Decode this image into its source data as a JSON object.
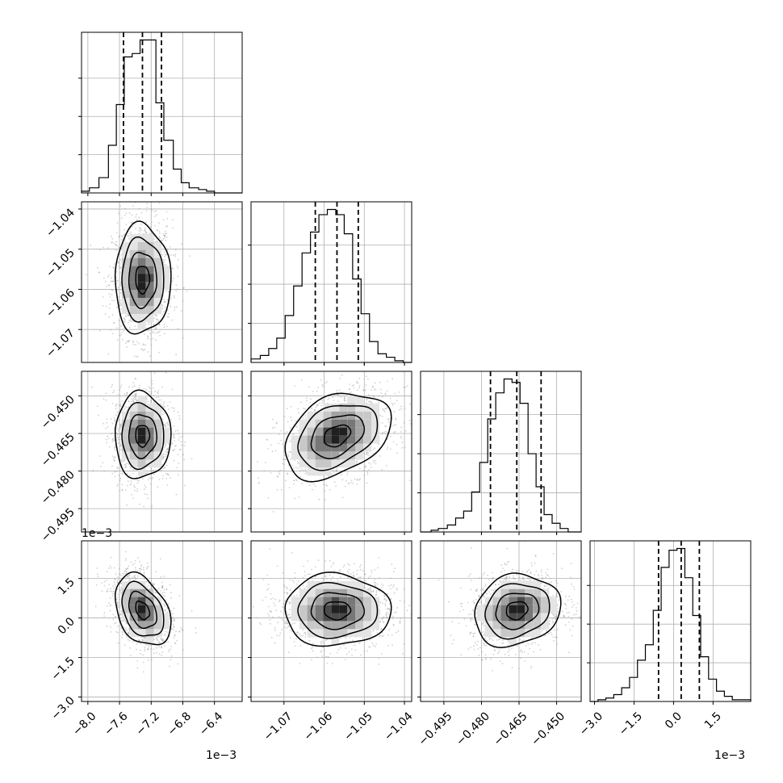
{
  "chart_data": {
    "type": "corner",
    "n_params": 4,
    "grid": true,
    "offset_labels": {
      "x_col0": "1e−3",
      "x_col3": "1e−3",
      "y_row3": "1e−3"
    },
    "params": [
      {
        "range": [
          -8.08,
          -6.05
        ],
        "ticks": [
          -8.0,
          -7.6,
          -7.2,
          -6.8,
          -6.4
        ],
        "tick_labels": [
          "−8.0",
          "−7.6",
          "−7.2",
          "−6.8",
          "−6.4"
        ],
        "quantiles": [
          -7.55,
          -7.31,
          -7.07
        ]
      },
      {
        "range": [
          -1.0782,
          -1.0382
        ],
        "ticks": [
          -1.07,
          -1.06,
          -1.05,
          -1.04
        ],
        "tick_labels": [
          "−1.07",
          "−1.06",
          "−1.05",
          "−1.04"
        ],
        "quantiles": [
          -1.0622,
          -1.0568,
          -1.0515
        ]
      },
      {
        "range": [
          -0.5043,
          -0.4402
        ],
        "ticks": [
          -0.495,
          -0.48,
          -0.465,
          -0.45
        ],
        "tick_labels": [
          "−0.495",
          "−0.480",
          "−0.465",
          "−0.450"
        ],
        "quantiles": [
          -0.4764,
          -0.4659,
          -0.4562
        ]
      },
      {
        "range": [
          -3.17,
          2.93
        ],
        "ticks": [
          -3.0,
          -1.5,
          0.0,
          1.5
        ],
        "tick_labels": [
          "−3.0",
          "−1.5",
          "0.0",
          "1.5"
        ],
        "quantiles": [
          -0.57,
          0.29,
          0.98
        ]
      }
    ],
    "histograms": [
      {
        "param": 0,
        "edges": [
          -8.08,
          -7.98,
          -7.86,
          -7.74,
          -7.64,
          -7.54,
          -7.44,
          -7.34,
          -7.24,
          -7.14,
          -7.04,
          -6.92,
          -6.82,
          -6.72,
          -6.6,
          -6.5,
          -6.4,
          -6.3,
          -6.2,
          -6.05
        ],
        "counts": [
          1,
          3,
          9,
          28,
          52,
          80,
          82,
          90,
          90,
          53,
          31,
          14,
          6,
          3,
          2,
          1,
          0,
          0,
          0
        ]
      },
      {
        "param": 1,
        "edges": [
          -1.0782,
          -1.0759,
          -1.0738,
          -1.0718,
          -1.0697,
          -1.0676,
          -1.0655,
          -1.0634,
          -1.0613,
          -1.0592,
          -1.0571,
          -1.055,
          -1.0529,
          -1.0508,
          -1.0487,
          -1.0466,
          -1.0445,
          -1.0424,
          -1.0403,
          -1.0382
        ],
        "counts": [
          2,
          4,
          8,
          14,
          27,
          44,
          63,
          75,
          85,
          88,
          85,
          74,
          48,
          28,
          12,
          5,
          3,
          1,
          0
        ]
      },
      {
        "param": 2,
        "edges": [
          -0.5043,
          -0.5001,
          -0.4972,
          -0.4936,
          -0.4903,
          -0.4871,
          -0.4839,
          -0.4807,
          -0.4775,
          -0.4743,
          -0.471,
          -0.4678,
          -0.4646,
          -0.4614,
          -0.4582,
          -0.455,
          -0.4518,
          -0.4486,
          -0.4454,
          -0.4402
        ],
        "counts": [
          0,
          1,
          2,
          4,
          8,
          12,
          23,
          40,
          65,
          80,
          88,
          86,
          74,
          45,
          26,
          10,
          5,
          2,
          0
        ]
      },
      {
        "param": 3,
        "edges": [
          -3.17,
          -2.87,
          -2.57,
          -2.27,
          -1.97,
          -1.67,
          -1.37,
          -1.07,
          -0.77,
          -0.47,
          -0.17,
          0.13,
          0.43,
          0.73,
          1.03,
          1.33,
          1.63,
          1.93,
          2.23,
          2.93
        ],
        "counts": [
          0,
          1,
          2,
          4,
          8,
          14,
          24,
          33,
          53,
          78,
          88,
          89,
          72,
          50,
          26,
          13,
          6,
          3,
          1
        ]
      }
    ],
    "pairs": [
      {
        "x_param": 0,
        "y_param": 1,
        "peak": [
          -7.31,
          -1.0575
        ],
        "sigma": [
          0.16,
          0.0062
        ],
        "rho": 0.0
      },
      {
        "x_param": 0,
        "y_param": 2,
        "peak": [
          -7.31,
          -0.4659
        ],
        "sigma": [
          0.16,
          0.0078
        ],
        "rho": 0.0
      },
      {
        "x_param": 1,
        "y_param": 2,
        "peak": [
          -1.0568,
          -0.4659
        ],
        "sigma": [
          0.006,
          0.0078
        ],
        "rho": 0.35
      },
      {
        "x_param": 0,
        "y_param": 3,
        "peak": [
          -7.31,
          0.29
        ],
        "sigma": [
          0.16,
          0.62
        ],
        "rho": -0.35
      },
      {
        "x_param": 1,
        "y_param": 3,
        "peak": [
          -1.0568,
          0.29
        ],
        "sigma": [
          0.006,
          0.62
        ],
        "rho": 0.0
      },
      {
        "x_param": 2,
        "y_param": 3,
        "peak": [
          -0.4659,
          0.29
        ],
        "sigma": [
          0.0078,
          0.62
        ],
        "rho": 0.15
      }
    ],
    "contour_levels_sigma": [
      0.5,
      1.0,
      1.5,
      2.0
    ]
  }
}
